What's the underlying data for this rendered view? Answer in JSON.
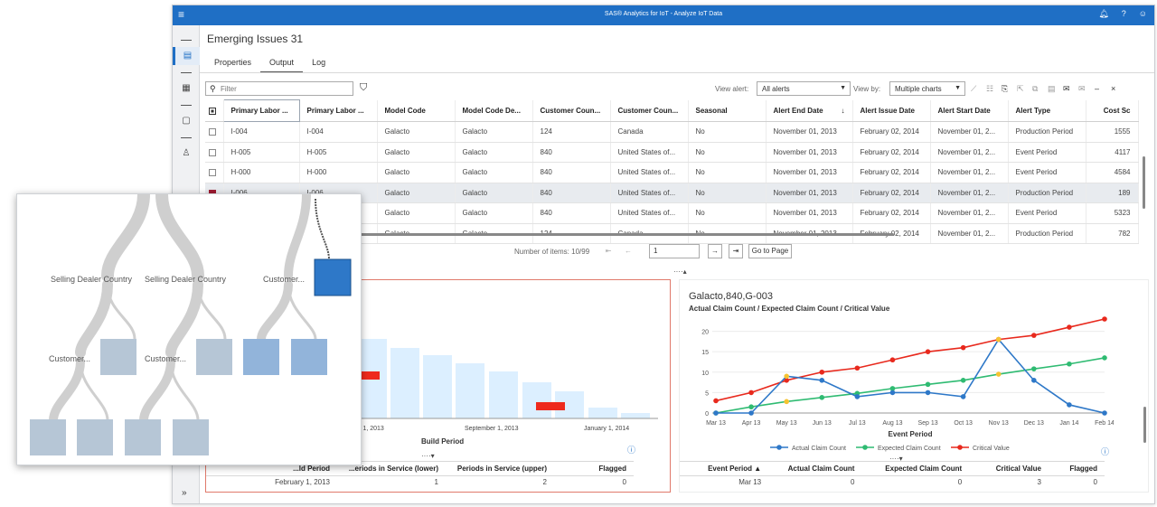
{
  "app": {
    "title": "SAS® Analytics for IoT - Analyze IoT Data",
    "page_title": "Emerging Issues 31",
    "tabs": [
      "Properties",
      "Output",
      "Log"
    ],
    "active_tab": "Output",
    "icons": {
      "menu": "menu-icon",
      "notifications": "bell-icon",
      "help": "help-icon",
      "user": "user-icon"
    }
  },
  "toolbar": {
    "filter_placeholder": "Filter",
    "view_alert_label": "View alert:",
    "view_alert_value": "All alerts",
    "view_by_label": "View by:",
    "view_by_value": "Multiple charts"
  },
  "grid": {
    "columns": [
      "Primary Labor ...",
      "Primary Labor ...",
      "Model Code",
      "Model Code De...",
      "Customer Coun...",
      "Customer Coun...",
      "Seasonal",
      "Alert End Date",
      "Alert Issue Date",
      "Alert Start Date",
      "Alert Type",
      "Cost Sc"
    ],
    "sort_indicator": "↓",
    "rows": [
      {
        "checked": false,
        "cells": [
          "I-004",
          "I-004",
          "Galacto",
          "Galacto",
          "124",
          "Canada",
          "No",
          "November 01, 2013",
          "February 02, 2014",
          "November 01, 2...",
          "Production Period",
          "1555"
        ]
      },
      {
        "checked": false,
        "cells": [
          "H-005",
          "H-005",
          "Galacto",
          "Galacto",
          "840",
          "United States of...",
          "No",
          "November 01, 2013",
          "February 02, 2014",
          "November 01, 2...",
          "Event Period",
          "4117"
        ]
      },
      {
        "checked": false,
        "cells": [
          "H-000",
          "H-000",
          "Galacto",
          "Galacto",
          "840",
          "United States of...",
          "No",
          "November 01, 2013",
          "February 02, 2014",
          "November 01, 2...",
          "Event Period",
          "4584"
        ]
      },
      {
        "checked": true,
        "cells": [
          "I-006",
          "I-006",
          "Galacto",
          "Galacto",
          "840",
          "United States of...",
          "No",
          "November 01, 2013",
          "February 02, 2014",
          "November 01, 2...",
          "Production Period",
          "189"
        ]
      },
      {
        "checked": false,
        "cells": [
          "",
          "",
          "Galacto",
          "Galacto",
          "840",
          "United States of...",
          "No",
          "November 01, 2013",
          "February 02, 2014",
          "November 01, 2...",
          "Event Period",
          "5323"
        ]
      },
      {
        "checked": false,
        "cells": [
          "",
          "",
          "Galacto",
          "Galacto",
          "124",
          "Canada",
          "No",
          "November 01, 2013",
          "February 02, 2014",
          "November 01, 2...",
          "Production Period",
          "782"
        ]
      }
    ]
  },
  "pager": {
    "items_label": "Number of items: 10/99",
    "page_value": "1",
    "go_label": "Go to Page"
  },
  "left_chart": {
    "x_ticks": [
      "y 1, 2013",
      "September 1, 2013",
      "January 1, 2014"
    ],
    "xlabel": "Build Period",
    "table": {
      "columns": [
        "...ld Period",
        "...eriods in Service (lower)",
        "Periods in Service (upper)",
        "Flagged"
      ],
      "rows": [
        [
          "February 1, 2013",
          "1",
          "2",
          "0"
        ]
      ]
    }
  },
  "right_chart": {
    "title": "Galacto,840,G-003",
    "subtitle": "Actual Claim Count / Expected Claim Count / Critical Value",
    "table": {
      "columns": [
        "Event Period ▲",
        "Actual Claim Count",
        "Expected Claim Count",
        "Critical Value",
        "Flagged"
      ],
      "rows": [
        [
          "Mar 13",
          "0",
          "0",
          "3",
          "0"
        ]
      ]
    }
  },
  "chart_data": [
    {
      "type": "line",
      "title": "Actual Claim Count / Expected Claim Count / Critical Value",
      "xlabel": "Event Period",
      "ylabel": "",
      "categories": [
        "Mar 13",
        "Apr 13",
        "May 13",
        "Jun 13",
        "Jul 13",
        "Aug 13",
        "Sep 13",
        "Oct 13",
        "Nov 13",
        "Dec 13",
        "Jan 14",
        "Feb 14"
      ],
      "yticks": [
        "0",
        "5",
        "10",
        "15",
        "20"
      ],
      "ylim": [
        0,
        23
      ],
      "legend": "bottom",
      "grid": true,
      "series": [
        {
          "name": "Actual Claim Count",
          "color": "#2e78c8",
          "values": [
            0,
            0,
            9,
            8,
            4,
            5,
            5,
            4,
            18,
            8,
            2,
            0
          ]
        },
        {
          "name": "Expected Claim Count",
          "color": "#2fbb72",
          "values": [
            0,
            1.5,
            2.8,
            3.8,
            4.8,
            6,
            7,
            8,
            9.5,
            10.8,
            12,
            13.5
          ]
        },
        {
          "name": "Critical Value",
          "color": "#e8291d",
          "values": [
            3,
            5,
            8,
            10,
            11,
            13,
            15,
            16,
            18,
            19,
            21,
            23
          ]
        }
      ],
      "flagged_color": "#f5c331"
    }
  ],
  "overlay": {
    "labels": [
      "Selling Dealer Country",
      "Selling Dealer Country",
      "Customer...",
      "Customer...",
      "Customer..."
    ]
  }
}
